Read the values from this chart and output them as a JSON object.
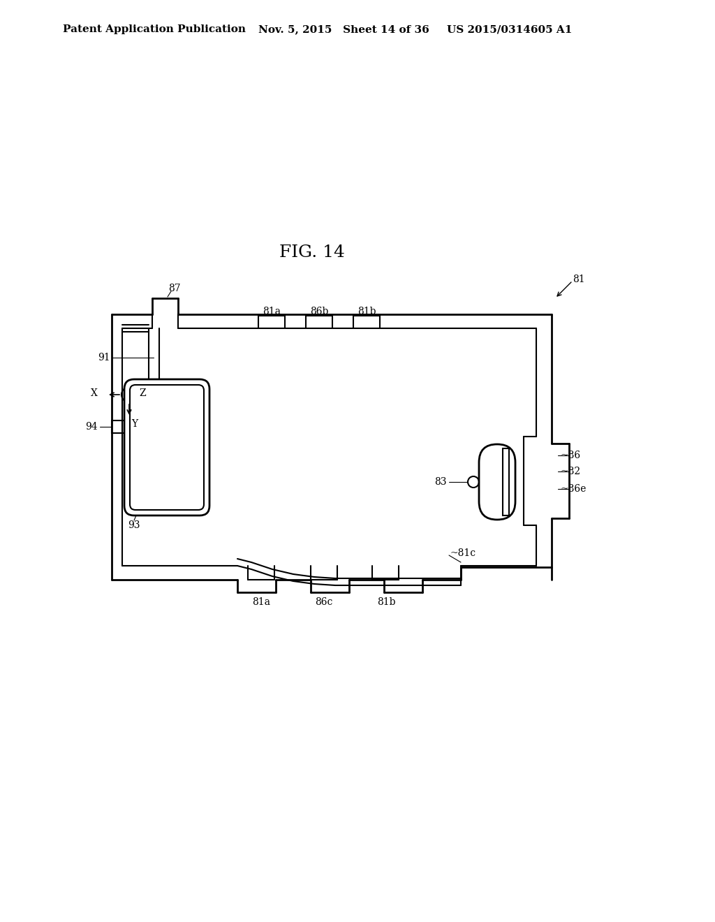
{
  "title": "FIG. 14",
  "header_left": "Patent Application Publication",
  "header_mid": "Nov. 5, 2015   Sheet 14 of 36",
  "header_right": "US 2015/0314605 A1",
  "bg_color": "#ffffff",
  "line_color": "#000000",
  "fig_title_fontsize": 18,
  "header_fontsize": 11,
  "label_fontsize": 10
}
